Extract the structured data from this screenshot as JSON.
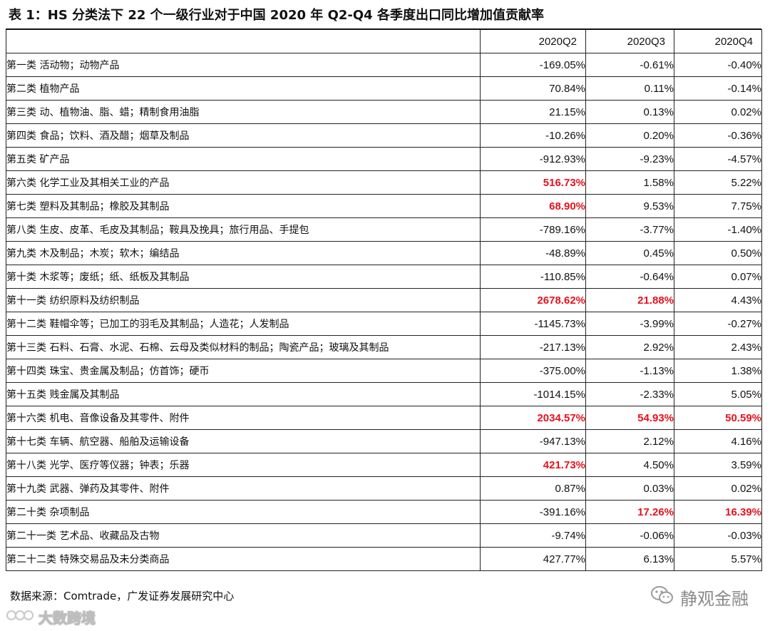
{
  "title": "表 1：HS 分类法下 22 个一级行业对于中国 2020 年 Q2-Q4 各季度出口同比增加值贡献率",
  "columns": [
    "2020Q2",
    "2020Q3",
    "2020Q4"
  ],
  "highlight_color": "#e8111b",
  "rows": [
    {
      "category": "第一类 活动物；动物产品",
      "values": [
        "-169.05%",
        "-0.61%",
        "-0.40%"
      ],
      "highlight": [
        false,
        false,
        false
      ]
    },
    {
      "category": "第二类 植物产品",
      "values": [
        "70.84%",
        "0.11%",
        "-0.14%"
      ],
      "highlight": [
        false,
        false,
        false
      ]
    },
    {
      "category": "第三类 动、植物油、脂、蜡；精制食用油脂",
      "values": [
        "21.15%",
        "0.13%",
        "0.02%"
      ],
      "highlight": [
        false,
        false,
        false
      ]
    },
    {
      "category": "第四类 食品；饮料、酒及醋；烟草及制品",
      "values": [
        "-10.26%",
        "0.20%",
        "-0.36%"
      ],
      "highlight": [
        false,
        false,
        false
      ]
    },
    {
      "category": "第五类 矿产品",
      "values": [
        "-912.93%",
        "-9.23%",
        "-4.57%"
      ],
      "highlight": [
        false,
        false,
        false
      ]
    },
    {
      "category": "第六类 化学工业及其相关工业的产品",
      "values": [
        "516.73%",
        "1.58%",
        "5.22%"
      ],
      "highlight": [
        true,
        false,
        false
      ]
    },
    {
      "category": "第七类 塑料及其制品；橡胶及其制品",
      "values": [
        "68.90%",
        "9.53%",
        "7.75%"
      ],
      "highlight": [
        true,
        false,
        false
      ]
    },
    {
      "category": "第八类 生皮、皮革、毛皮及其制品；鞍具及挽具；旅行用品、手提包",
      "values": [
        "-789.16%",
        "-3.77%",
        "-1.40%"
      ],
      "highlight": [
        false,
        false,
        false
      ]
    },
    {
      "category": "第九类 木及制品；木炭；软木；编结品",
      "values": [
        "-48.89%",
        "0.45%",
        "0.50%"
      ],
      "highlight": [
        false,
        false,
        false
      ]
    },
    {
      "category": "第十类 木浆等；废纸；纸、纸板及其制品",
      "values": [
        "-110.85%",
        "-0.64%",
        "0.07%"
      ],
      "highlight": [
        false,
        false,
        false
      ]
    },
    {
      "category": "第十一类 纺织原料及纺织制品",
      "values": [
        "2678.62%",
        "21.88%",
        "4.43%"
      ],
      "highlight": [
        true,
        true,
        false
      ]
    },
    {
      "category": "第十二类 鞋帽伞等；已加工的羽毛及其制品；人造花；人发制品",
      "values": [
        "-1145.73%",
        "-3.99%",
        "-0.27%"
      ],
      "highlight": [
        false,
        false,
        false
      ]
    },
    {
      "category": "第十三类 石料、石膏、水泥、石棉、云母及类似材料的制品；陶瓷产品；玻璃及其制品",
      "values": [
        "-217.13%",
        "2.92%",
        "2.43%"
      ],
      "highlight": [
        false,
        false,
        false
      ]
    },
    {
      "category": "第十四类 珠宝、贵金属及制品；仿首饰；硬币",
      "values": [
        "-375.00%",
        "-1.13%",
        "1.38%"
      ],
      "highlight": [
        false,
        false,
        false
      ]
    },
    {
      "category": "第十五类 贱金属及其制品",
      "values": [
        "-1014.15%",
        "-2.33%",
        "5.05%"
      ],
      "highlight": [
        false,
        false,
        false
      ]
    },
    {
      "category": "第十六类 机电、音像设备及其零件、附件",
      "values": [
        "2034.57%",
        "54.93%",
        "50.59%"
      ],
      "highlight": [
        true,
        true,
        true
      ]
    },
    {
      "category": "第十七类 车辆、航空器、船舶及运输设备",
      "values": [
        "-947.13%",
        "2.12%",
        "4.16%"
      ],
      "highlight": [
        false,
        false,
        false
      ]
    },
    {
      "category": "第十八类 光学、医疗等仪器；钟表；乐器",
      "values": [
        "421.73%",
        "4.50%",
        "3.59%"
      ],
      "highlight": [
        true,
        false,
        false
      ]
    },
    {
      "category": "第十九类 武器、弹药及其零件、附件",
      "values": [
        "0.87%",
        "0.03%",
        "0.02%"
      ],
      "highlight": [
        false,
        false,
        false
      ]
    },
    {
      "category": "第二十类 杂项制品",
      "values": [
        "-391.16%",
        "17.26%",
        "16.39%"
      ],
      "highlight": [
        false,
        true,
        true
      ]
    },
    {
      "category": "第二十一类 艺术品、收藏品及古物",
      "values": [
        "-9.74%",
        "-0.06%",
        "-0.03%"
      ],
      "highlight": [
        false,
        false,
        false
      ]
    },
    {
      "category": "第二十二类 特殊交易品及未分类商品",
      "values": [
        "427.77%",
        "6.13%",
        "5.57%"
      ],
      "highlight": [
        false,
        false,
        false
      ]
    }
  ],
  "source": "数据来源：Comtrade，广发证券发展研究中心",
  "watermark_right": {
    "label": "静观金融",
    "icon": "wechat-icon"
  },
  "watermark_left": {
    "label": "大数跨境",
    "icon": "logo-icon"
  }
}
